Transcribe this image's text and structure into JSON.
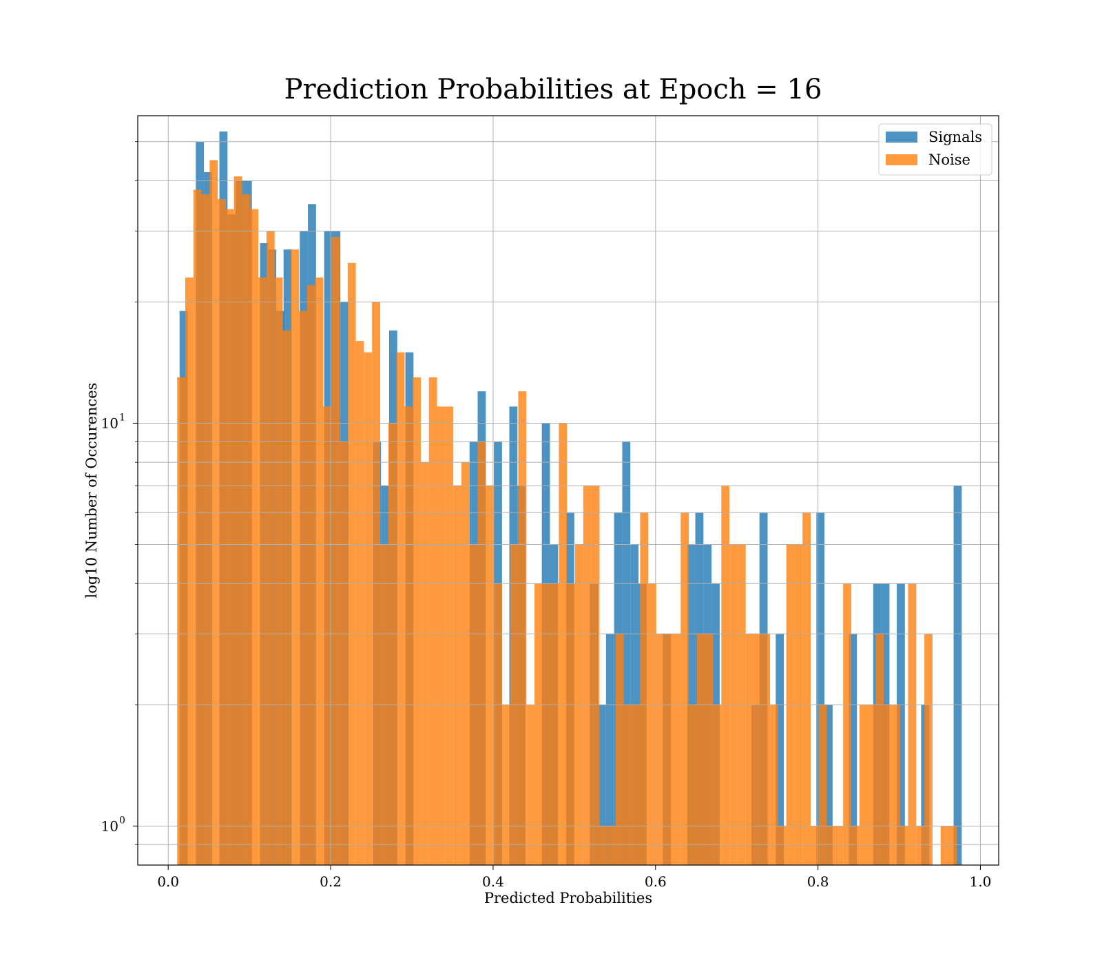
{
  "chart_data": {
    "type": "bar",
    "title": "Prediction Probabilities at Epoch = 16",
    "xlabel": "Predicted Probabilities",
    "ylabel": "log10 Number of Occurences",
    "xlim": [
      -0.0375,
      1.0225
    ],
    "ylim": [
      0.8,
      58
    ],
    "yscale": "log",
    "grid": true,
    "legend_position": "top-right",
    "x_ticks": [
      {
        "value": 0.0,
        "label": "0.0"
      },
      {
        "value": 0.2,
        "label": "0.2"
      },
      {
        "value": 0.4,
        "label": "0.4"
      },
      {
        "value": 0.6,
        "label": "0.6"
      },
      {
        "value": 0.8,
        "label": "0.8"
      },
      {
        "value": 1.0,
        "label": "1.0"
      }
    ],
    "y_ticks": [
      {
        "value": 1,
        "base": "10",
        "exp": "0"
      },
      {
        "value": 10,
        "base": "10",
        "exp": "1"
      }
    ],
    "y_minor_ticks": [
      0.9,
      2,
      3,
      4,
      5,
      6,
      7,
      8,
      9,
      20,
      30,
      40,
      50
    ],
    "series": [
      {
        "name": "Signals",
        "color": "#1f77b4",
        "bins": [
          [
            0.014,
            0.024,
            19
          ],
          [
            0.034,
            0.044,
            50
          ],
          [
            0.044,
            0.054,
            42
          ],
          [
            0.063,
            0.073,
            53
          ],
          [
            0.073,
            0.083,
            33
          ],
          [
            0.083,
            0.093,
            40
          ],
          [
            0.093,
            0.103,
            40
          ],
          [
            0.113,
            0.123,
            28
          ],
          [
            0.123,
            0.133,
            27
          ],
          [
            0.133,
            0.143,
            19
          ],
          [
            0.142,
            0.152,
            27
          ],
          [
            0.162,
            0.172,
            30
          ],
          [
            0.172,
            0.182,
            35
          ],
          [
            0.192,
            0.202,
            30
          ],
          [
            0.202,
            0.212,
            30
          ],
          [
            0.212,
            0.222,
            20
          ],
          [
            0.252,
            0.262,
            9
          ],
          [
            0.262,
            0.272,
            7
          ],
          [
            0.272,
            0.282,
            17
          ],
          [
            0.292,
            0.302,
            15
          ],
          [
            0.371,
            0.381,
            9
          ],
          [
            0.381,
            0.391,
            12
          ],
          [
            0.401,
            0.411,
            9
          ],
          [
            0.42,
            0.43,
            11
          ],
          [
            0.43,
            0.44,
            7
          ],
          [
            0.46,
            0.47,
            10
          ],
          [
            0.47,
            0.48,
            5
          ],
          [
            0.49,
            0.5,
            6
          ],
          [
            0.519,
            0.529,
            4
          ],
          [
            0.529,
            0.539,
            2
          ],
          [
            0.539,
            0.549,
            3
          ],
          [
            0.549,
            0.559,
            6
          ],
          [
            0.559,
            0.569,
            9
          ],
          [
            0.569,
            0.579,
            5
          ],
          [
            0.579,
            0.589,
            4
          ],
          [
            0.609,
            0.619,
            3
          ],
          [
            0.639,
            0.649,
            5
          ],
          [
            0.649,
            0.659,
            6
          ],
          [
            0.659,
            0.669,
            5
          ],
          [
            0.669,
            0.679,
            4
          ],
          [
            0.718,
            0.728,
            2
          ],
          [
            0.728,
            0.738,
            6
          ],
          [
            0.748,
            0.758,
            3
          ],
          [
            0.798,
            0.808,
            6
          ],
          [
            0.808,
            0.818,
            2
          ],
          [
            0.838,
            0.848,
            3
          ],
          [
            0.868,
            0.878,
            4
          ],
          [
            0.878,
            0.888,
            4
          ],
          [
            0.897,
            0.907,
            4
          ],
          [
            0.927,
            0.937,
            2
          ],
          [
            0.967,
            0.977,
            7
          ]
        ]
      },
      {
        "name": "Noise",
        "color": "#ff7f0e",
        "bins": [
          [
            0.011,
            0.021,
            13
          ],
          [
            0.021,
            0.031,
            23
          ],
          [
            0.031,
            0.041,
            38
          ],
          [
            0.041,
            0.051,
            37
          ],
          [
            0.051,
            0.061,
            45
          ],
          [
            0.061,
            0.071,
            36
          ],
          [
            0.071,
            0.081,
            34
          ],
          [
            0.081,
            0.091,
            41
          ],
          [
            0.091,
            0.101,
            37
          ],
          [
            0.101,
            0.111,
            34
          ],
          [
            0.111,
            0.121,
            23
          ],
          [
            0.121,
            0.131,
            30
          ],
          [
            0.131,
            0.141,
            23
          ],
          [
            0.141,
            0.151,
            17
          ],
          [
            0.151,
            0.161,
            27
          ],
          [
            0.161,
            0.171,
            19
          ],
          [
            0.171,
            0.181,
            22
          ],
          [
            0.181,
            0.191,
            23
          ],
          [
            0.191,
            0.201,
            11
          ],
          [
            0.201,
            0.211,
            29
          ],
          [
            0.211,
            0.221,
            9
          ],
          [
            0.221,
            0.231,
            25
          ],
          [
            0.231,
            0.241,
            16
          ],
          [
            0.241,
            0.251,
            15
          ],
          [
            0.251,
            0.261,
            20
          ],
          [
            0.261,
            0.271,
            5
          ],
          [
            0.271,
            0.281,
            10
          ],
          [
            0.281,
            0.291,
            15
          ],
          [
            0.291,
            0.301,
            11
          ],
          [
            0.301,
            0.311,
            13
          ],
          [
            0.311,
            0.321,
            8
          ],
          [
            0.321,
            0.331,
            13
          ],
          [
            0.331,
            0.341,
            11
          ],
          [
            0.341,
            0.351,
            11
          ],
          [
            0.351,
            0.361,
            7
          ],
          [
            0.361,
            0.371,
            8
          ],
          [
            0.371,
            0.381,
            5
          ],
          [
            0.381,
            0.391,
            9
          ],
          [
            0.391,
            0.401,
            7
          ],
          [
            0.401,
            0.411,
            4
          ],
          [
            0.411,
            0.421,
            2
          ],
          [
            0.421,
            0.431,
            5
          ],
          [
            0.431,
            0.441,
            12
          ],
          [
            0.441,
            0.451,
            2
          ],
          [
            0.451,
            0.461,
            4
          ],
          [
            0.461,
            0.471,
            4
          ],
          [
            0.471,
            0.481,
            4
          ],
          [
            0.481,
            0.491,
            10
          ],
          [
            0.491,
            0.501,
            4
          ],
          [
            0.501,
            0.511,
            5
          ],
          [
            0.511,
            0.521,
            7
          ],
          [
            0.521,
            0.531,
            7
          ],
          [
            0.531,
            0.541,
            1
          ],
          [
            0.541,
            0.551,
            1
          ],
          [
            0.551,
            0.561,
            3
          ],
          [
            0.561,
            0.571,
            2
          ],
          [
            0.571,
            0.581,
            2
          ],
          [
            0.581,
            0.591,
            6
          ],
          [
            0.591,
            0.601,
            4
          ],
          [
            0.601,
            0.611,
            3
          ],
          [
            0.611,
            0.621,
            3
          ],
          [
            0.621,
            0.631,
            3
          ],
          [
            0.631,
            0.641,
            6
          ],
          [
            0.641,
            0.651,
            2
          ],
          [
            0.651,
            0.661,
            3
          ],
          [
            0.661,
            0.671,
            3
          ],
          [
            0.671,
            0.681,
            2
          ],
          [
            0.681,
            0.691,
            7
          ],
          [
            0.691,
            0.701,
            5
          ],
          [
            0.701,
            0.711,
            5
          ],
          [
            0.711,
            0.721,
            3
          ],
          [
            0.721,
            0.731,
            3
          ],
          [
            0.731,
            0.741,
            3
          ],
          [
            0.741,
            0.751,
            2
          ],
          [
            0.751,
            0.761,
            1
          ],
          [
            0.761,
            0.771,
            5
          ],
          [
            0.771,
            0.781,
            5
          ],
          [
            0.781,
            0.791,
            6
          ],
          [
            0.791,
            0.801,
            1
          ],
          [
            0.801,
            0.811,
            2
          ],
          [
            0.811,
            0.821,
            1
          ],
          [
            0.821,
            0.831,
            1
          ],
          [
            0.831,
            0.841,
            4
          ],
          [
            0.841,
            0.851,
            1
          ],
          [
            0.851,
            0.861,
            2
          ],
          [
            0.861,
            0.871,
            2
          ],
          [
            0.871,
            0.881,
            3
          ],
          [
            0.881,
            0.891,
            2
          ],
          [
            0.891,
            0.901,
            2
          ],
          [
            0.901,
            0.911,
            1
          ],
          [
            0.911,
            0.921,
            4
          ],
          [
            0.921,
            0.931,
            1
          ],
          [
            0.931,
            0.941,
            3
          ],
          [
            0.951,
            0.961,
            1
          ],
          [
            0.961,
            0.971,
            1
          ]
        ]
      }
    ]
  }
}
